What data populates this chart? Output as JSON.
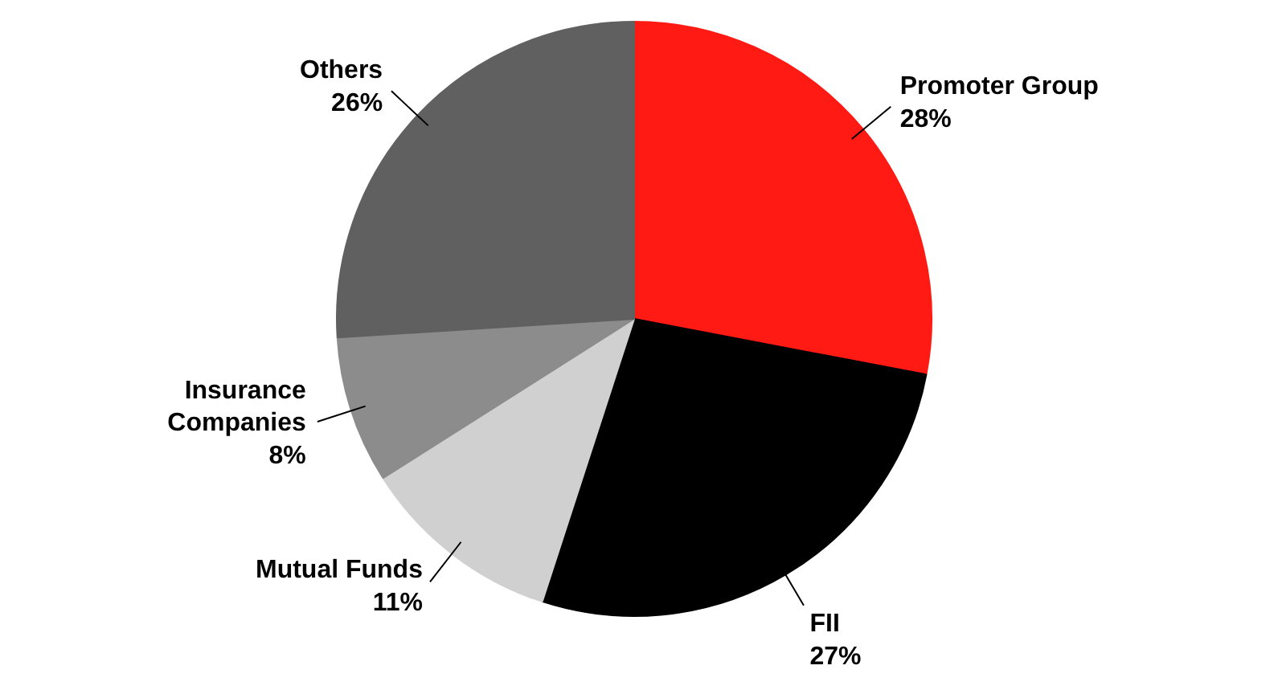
{
  "chart_data": {
    "type": "pie",
    "categories": [
      "Promoter Group",
      "FII",
      "Mutual Funds",
      "Insurance Companies",
      "Others"
    ],
    "values": [
      28,
      27,
      11,
      8,
      26
    ],
    "value_labels": [
      "28%",
      "27%",
      "11%",
      "8%",
      "26%"
    ],
    "colors": [
      "#ff1a14",
      "#000000",
      "#d0d0d0",
      "#8c8c8c",
      "#606060"
    ],
    "legend": false
  }
}
